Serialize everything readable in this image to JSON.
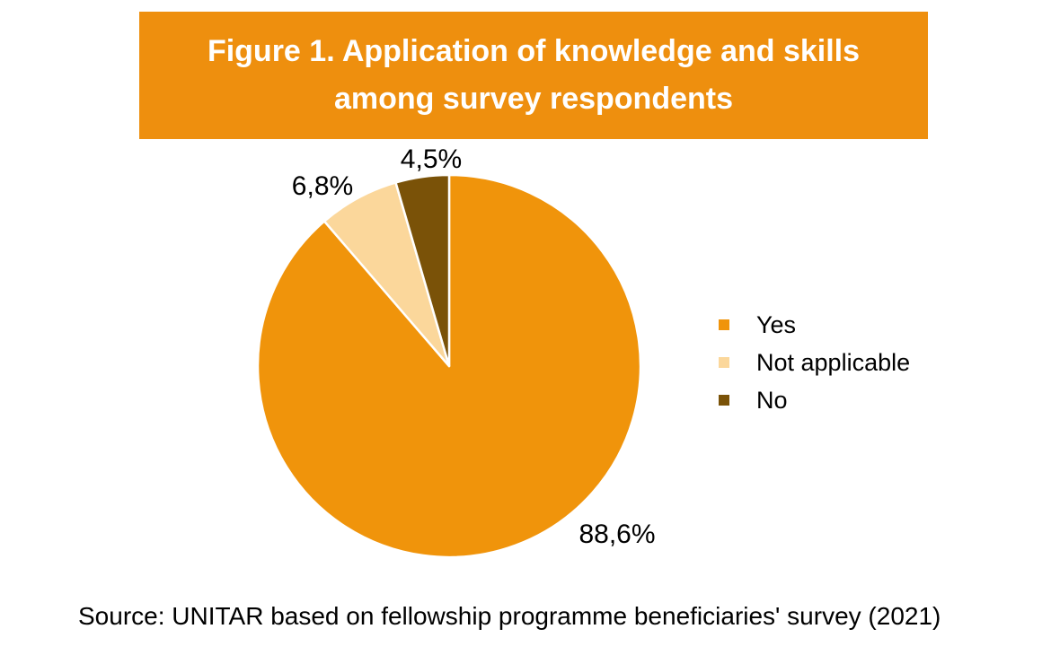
{
  "banner": {
    "title_line1": "Figure 1. Application of knowledge and skills",
    "title_line2": "among survey respondents",
    "bg_color": "#EE8F0E",
    "text_color": "#FFFFFF"
  },
  "chart_data": {
    "type": "pie",
    "title": "Figure 1. Application of knowledge and skills among survey respondents",
    "direction": "clockwise",
    "start_angle_deg": 0,
    "legend_position": "right",
    "slices": [
      {
        "label": "Yes",
        "value": 88.6,
        "display": "88,6%",
        "color": "#F0940B"
      },
      {
        "label": "Not applicable",
        "value": 6.8,
        "display": "6,8%",
        "color": "#FBD79B"
      },
      {
        "label": "No",
        "value": 4.5,
        "display": "4,5%",
        "color": "#7A5208"
      }
    ]
  },
  "source": {
    "text": "Source: UNITAR based on fellowship programme beneficiaries' survey (2021)"
  }
}
